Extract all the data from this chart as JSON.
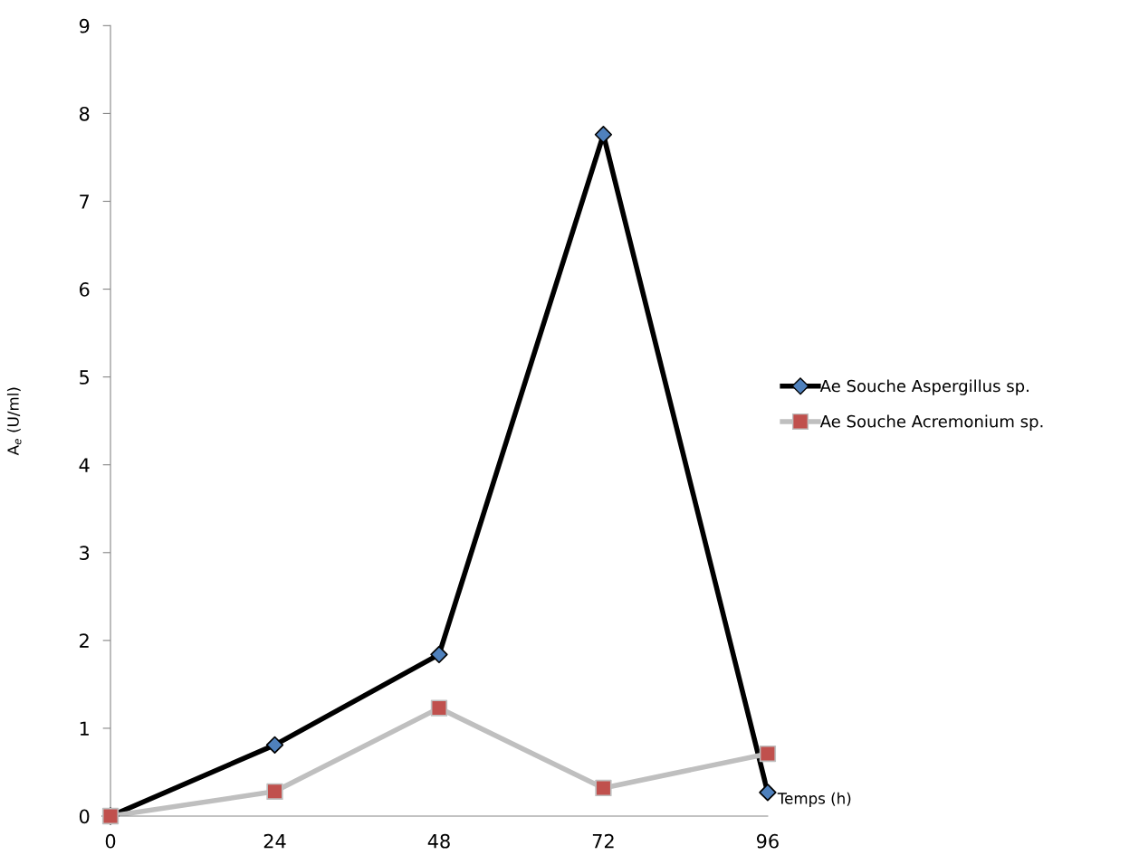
{
  "chart_data": {
    "type": "line",
    "xlabel": "Temps (h)",
    "ylabel": "A$_{e}$ (U/ml)",
    "x": [
      0,
      24,
      48,
      72,
      96
    ],
    "xlim": [
      0,
      96
    ],
    "xticks": [
      0,
      24,
      48,
      72,
      96
    ],
    "ylim": [
      0,
      9
    ],
    "yticks": [
      0,
      1,
      2,
      3,
      4,
      5,
      6,
      7,
      8,
      9
    ],
    "grid": false,
    "legend": "right",
    "line_style": "solid",
    "series": [
      {
        "name": "Ae Souche Aspergillus sp.",
        "color": "#000000",
        "marker": "diamond",
        "colors": [
          "#4f81bd",
          "#4f81bd",
          "#4f81bd",
          "#4f81bd",
          "#4f81bd"
        ],
        "values": [
          0,
          0.81,
          1.84,
          7.76,
          0.27
        ]
      },
      {
        "name": "Ae Souche Acremonium sp.",
        "color": "#bfbfbf",
        "marker": "square",
        "colors": [
          "#c0504d",
          "#c0504d",
          "#c0504d",
          "#c0504d",
          "#c0504d"
        ],
        "values": [
          0,
          0.28,
          1.23,
          0.32,
          0.71
        ]
      }
    ]
  }
}
